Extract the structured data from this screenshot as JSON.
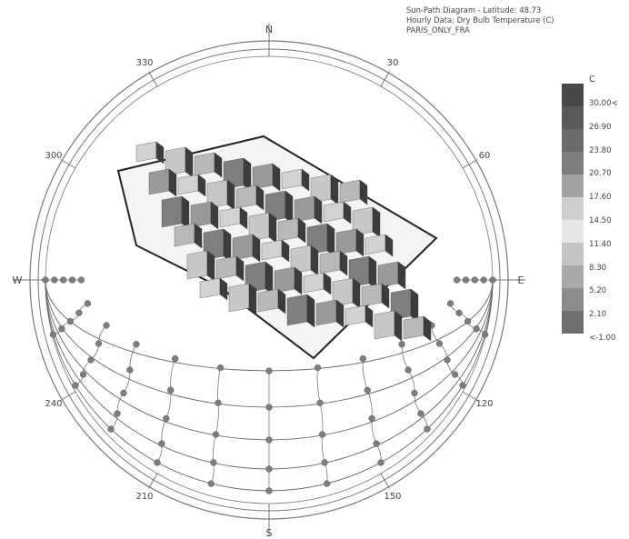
{
  "title": {
    "line1": "Sun-Path Diagram - Latitude: 48.73",
    "line2": "Hourly Data: Dry Bulb Temperature (C)",
    "line3": "PARIS_ONLY_FRA"
  },
  "compass": {
    "cardinals": [
      "N",
      "E",
      "S",
      "W"
    ],
    "degree_labels": [
      "30",
      "60",
      "120",
      "150",
      "210",
      "240",
      "300",
      "330"
    ]
  },
  "legend": {
    "unit": "C",
    "labels": [
      "30.00<",
      "26.90",
      "23.80",
      "20.70",
      "17.60",
      "14.50",
      "11.40",
      "8.30",
      "5.20",
      "2.10",
      "<-1.00"
    ],
    "colors": [
      "#484848",
      "#5a5a5a",
      "#6b6b6b",
      "#7e7e7e",
      "#a2a2a2",
      "#cfcfcf",
      "#e6e6e6",
      "#c4c4c4",
      "#a9a9a9",
      "#8c8c8c",
      "#6f6f6f"
    ]
  },
  "colors": {
    "circle": "#777777",
    "path": "#666666",
    "sun_dot": "#7d7d7d",
    "building_top": "#bdbdbd",
    "building_side": "#3c3c3c"
  }
}
